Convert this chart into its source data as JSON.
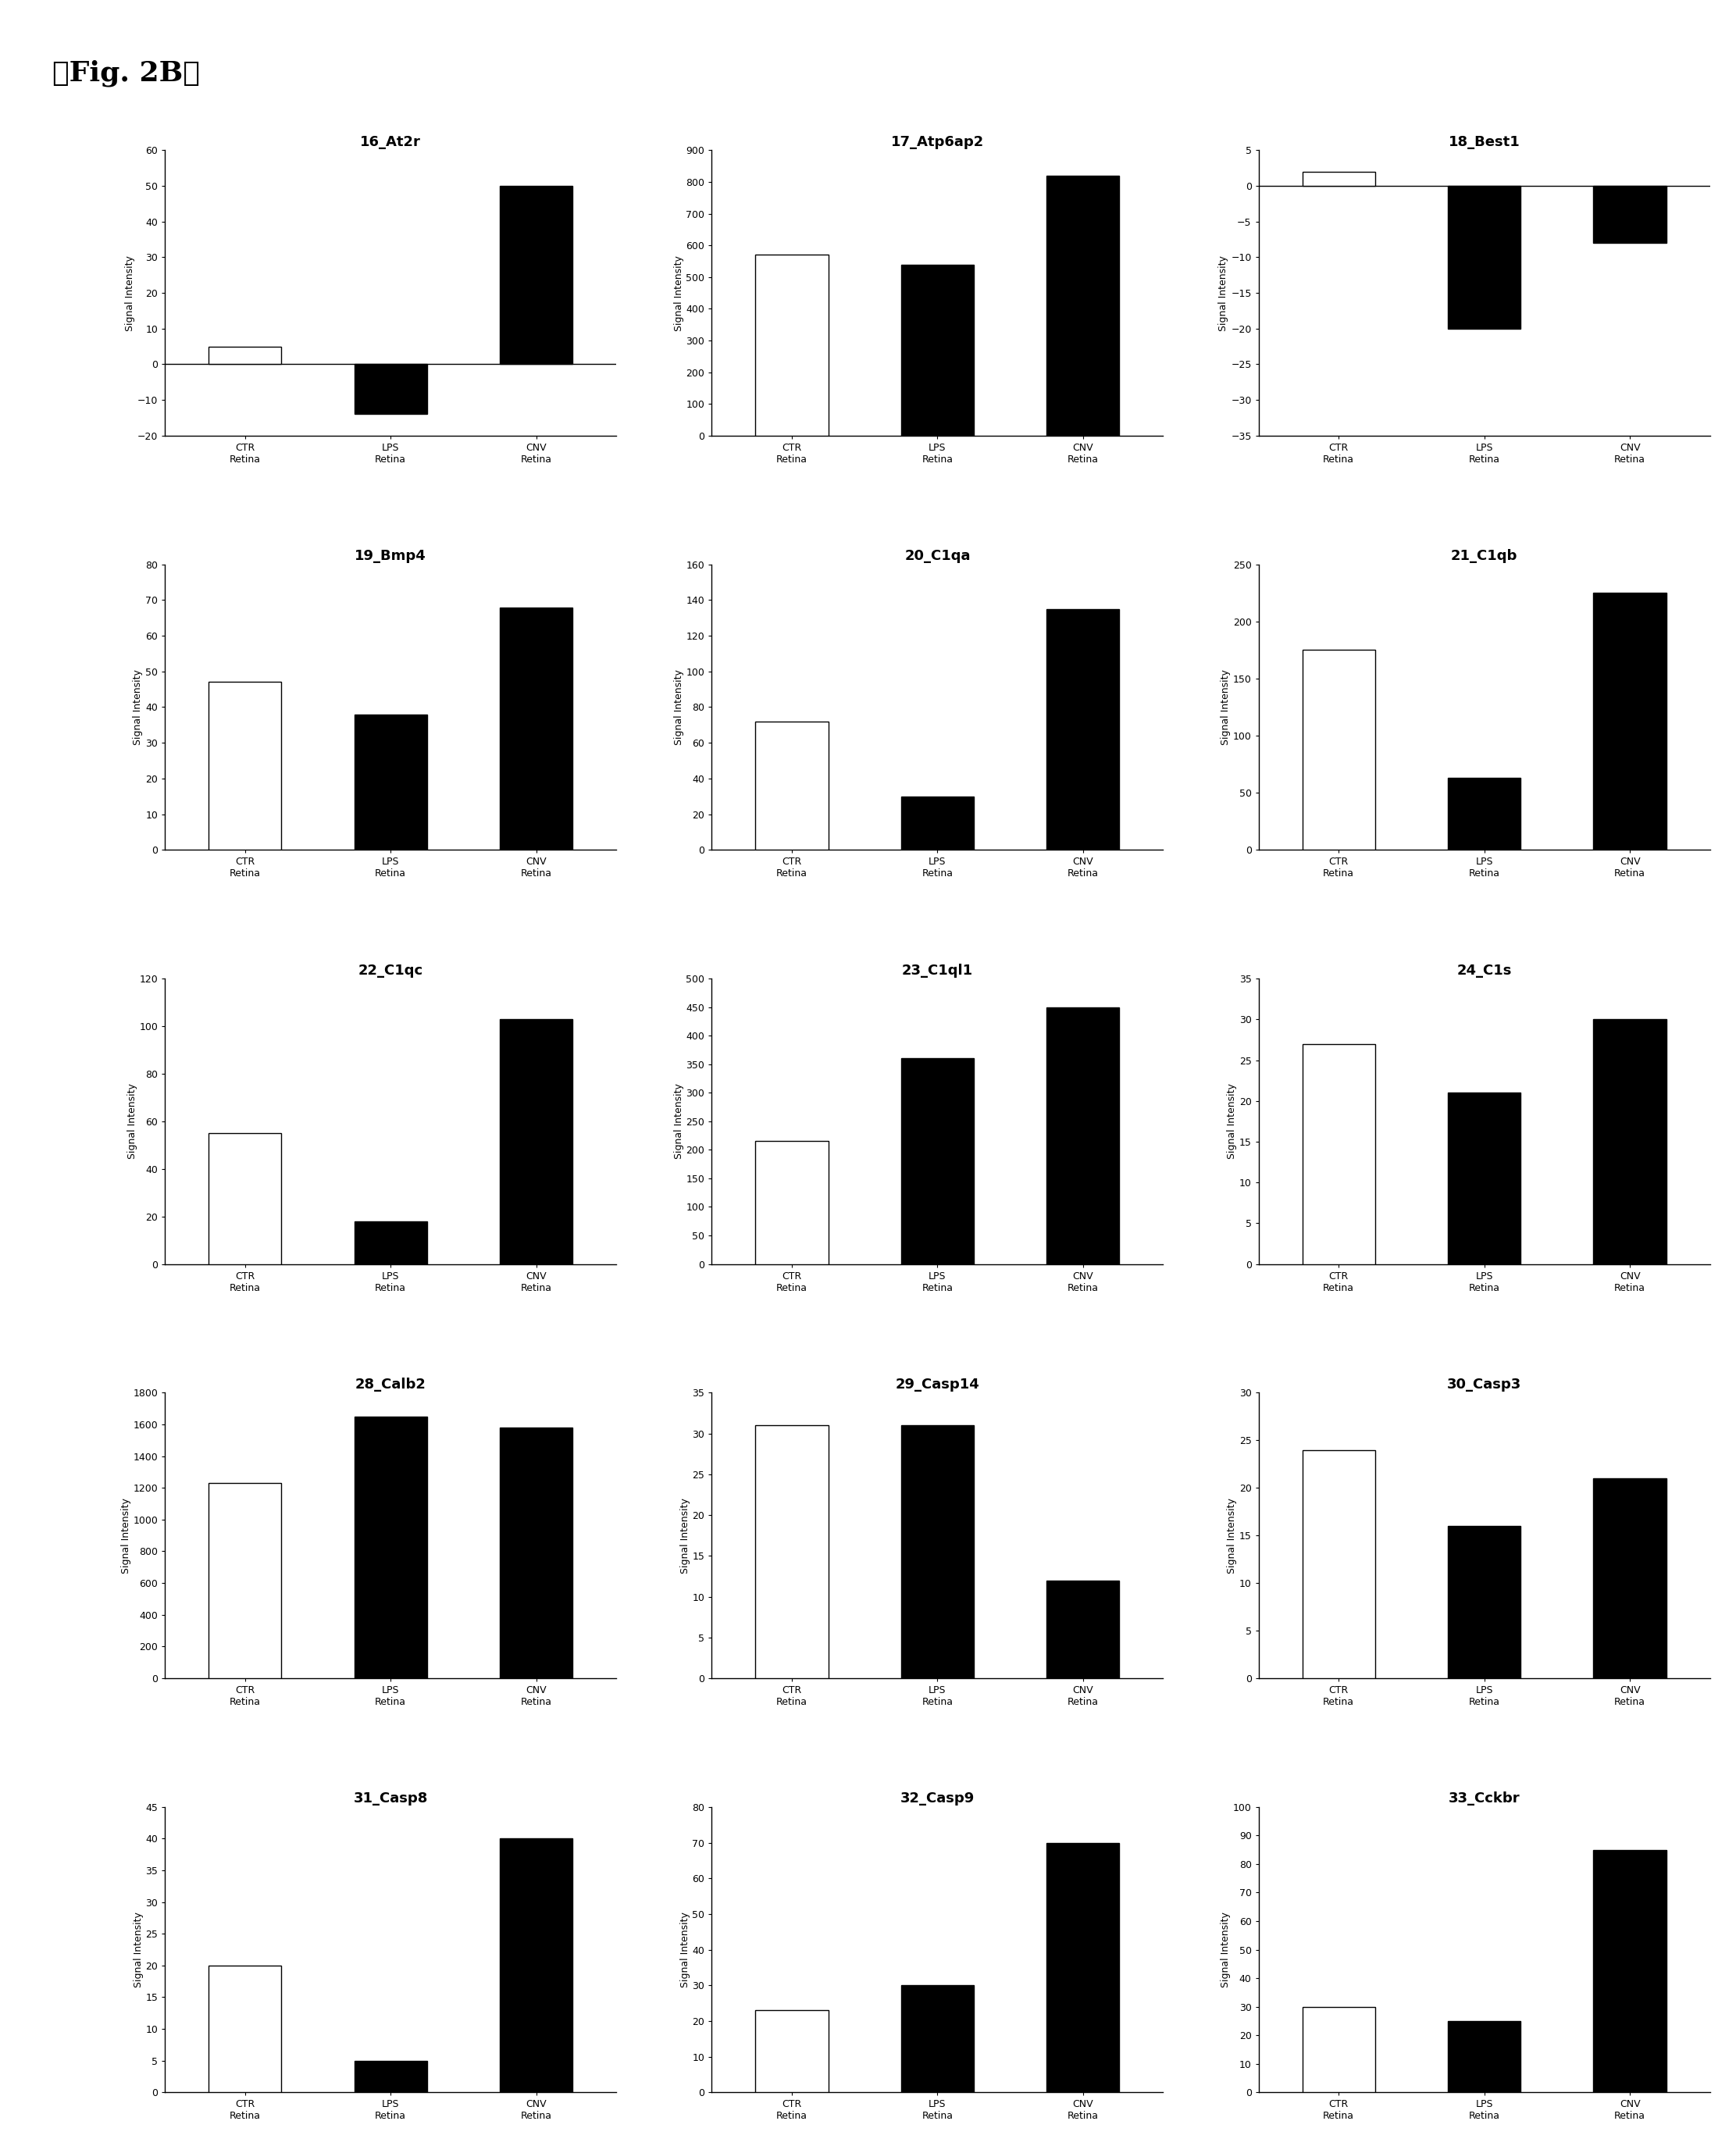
{
  "fig_label": "『Fig. 2B』",
  "charts": [
    {
      "title": "16_At2r",
      "values": [
        5,
        -14,
        50
      ],
      "ylim": [
        -20,
        60
      ],
      "yticks": [
        -20,
        -10,
        0,
        10,
        20,
        30,
        40,
        50,
        60
      ],
      "colors": [
        "white",
        "black",
        "black"
      ]
    },
    {
      "title": "17_Atp6ap2",
      "values": [
        570,
        540,
        820
      ],
      "ylim": [
        0,
        900
      ],
      "yticks": [
        0,
        100,
        200,
        300,
        400,
        500,
        600,
        700,
        800,
        900
      ],
      "colors": [
        "white",
        "black",
        "black"
      ]
    },
    {
      "title": "18_Best1",
      "values": [
        2,
        -20,
        -8
      ],
      "ylim": [
        -35,
        5
      ],
      "yticks": [
        -35,
        -30,
        -25,
        -20,
        -15,
        -10,
        -5,
        0,
        5
      ],
      "colors": [
        "white",
        "black",
        "black"
      ]
    },
    {
      "title": "19_Bmp4",
      "values": [
        47,
        38,
        68
      ],
      "ylim": [
        0,
        80
      ],
      "yticks": [
        0,
        10,
        20,
        30,
        40,
        50,
        60,
        70,
        80
      ],
      "colors": [
        "white",
        "black",
        "black"
      ]
    },
    {
      "title": "20_C1qa",
      "values": [
        72,
        30,
        135
      ],
      "ylim": [
        0,
        160
      ],
      "yticks": [
        0,
        20,
        40,
        60,
        80,
        100,
        120,
        140,
        160
      ],
      "colors": [
        "white",
        "black",
        "black"
      ]
    },
    {
      "title": "21_C1qb",
      "values": [
        175,
        63,
        225
      ],
      "ylim": [
        0,
        250
      ],
      "yticks": [
        0,
        50,
        100,
        150,
        200,
        250
      ],
      "colors": [
        "white",
        "black",
        "black"
      ]
    },
    {
      "title": "22_C1qc",
      "values": [
        55,
        18,
        103
      ],
      "ylim": [
        0,
        120
      ],
      "yticks": [
        0,
        20,
        40,
        60,
        80,
        100,
        120
      ],
      "colors": [
        "white",
        "black",
        "black"
      ]
    },
    {
      "title": "23_C1ql1",
      "values": [
        215,
        360,
        450
      ],
      "ylim": [
        0,
        500
      ],
      "yticks": [
        0,
        50,
        100,
        150,
        200,
        250,
        300,
        350,
        400,
        450,
        500
      ],
      "colors": [
        "white",
        "black",
        "black"
      ]
    },
    {
      "title": "24_C1s",
      "values": [
        27,
        21,
        30
      ],
      "ylim": [
        0,
        35
      ],
      "yticks": [
        0,
        5,
        10,
        15,
        20,
        25,
        30,
        35
      ],
      "colors": [
        "white",
        "black",
        "black"
      ]
    },
    {
      "title": "28_Calb2",
      "values": [
        1230,
        1650,
        1580
      ],
      "ylim": [
        0,
        1800
      ],
      "yticks": [
        0,
        200,
        400,
        600,
        800,
        1000,
        1200,
        1400,
        1600,
        1800
      ],
      "colors": [
        "white",
        "black",
        "black"
      ]
    },
    {
      "title": "29_Casp14",
      "values": [
        31,
        31,
        12
      ],
      "ylim": [
        0,
        35
      ],
      "yticks": [
        0,
        5,
        10,
        15,
        20,
        25,
        30,
        35
      ],
      "colors": [
        "white",
        "black",
        "black"
      ]
    },
    {
      "title": "30_Casp3",
      "values": [
        24,
        16,
        21
      ],
      "ylim": [
        0,
        30
      ],
      "yticks": [
        0,
        5,
        10,
        15,
        20,
        25,
        30
      ],
      "colors": [
        "white",
        "black",
        "black"
      ]
    },
    {
      "title": "31_Casp8",
      "values": [
        20,
        5,
        40
      ],
      "ylim": [
        0,
        45
      ],
      "yticks": [
        0,
        5,
        10,
        15,
        20,
        25,
        30,
        35,
        40,
        45
      ],
      "colors": [
        "white",
        "black",
        "black"
      ]
    },
    {
      "title": "32_Casp9",
      "values": [
        23,
        30,
        70
      ],
      "ylim": [
        0,
        80
      ],
      "yticks": [
        0,
        10,
        20,
        30,
        40,
        50,
        60,
        70,
        80
      ],
      "colors": [
        "white",
        "black",
        "black"
      ]
    },
    {
      "title": "33_Cckbr",
      "values": [
        30,
        25,
        85
      ],
      "ylim": [
        0,
        100
      ],
      "yticks": [
        0,
        10,
        20,
        30,
        40,
        50,
        60,
        70,
        80,
        90,
        100
      ],
      "colors": [
        "white",
        "black",
        "black"
      ]
    }
  ],
  "categories": [
    "CTR\nRetina",
    "LPS\nRetina",
    "CNV\nRetina"
  ],
  "bar_edge_colors": [
    "black",
    "black",
    "black"
  ],
  "ylabel": "Signal Intensity",
  "background_color": "white",
  "fig_label_fontsize": 26,
  "title_fontsize": 13,
  "tick_fontsize": 9,
  "ylabel_fontsize": 9,
  "nrows": 5,
  "ncols": 3
}
